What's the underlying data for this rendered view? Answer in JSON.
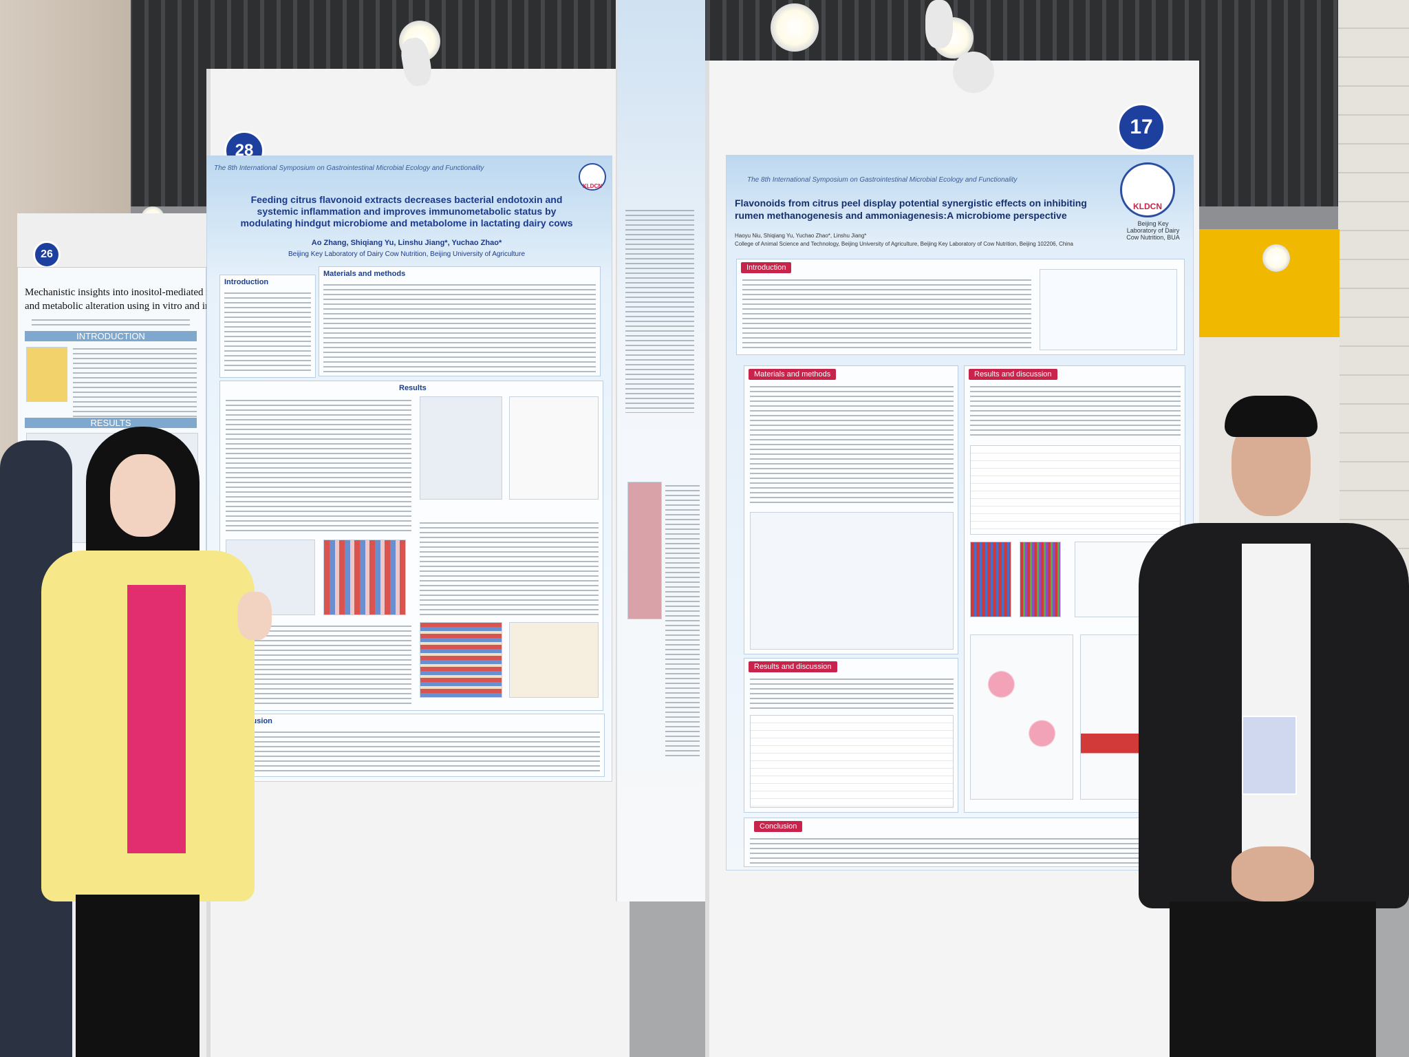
{
  "poster_26": {
    "number": "26",
    "title_line_1": "Mechanistic insights into inositol-mediated rumen f",
    "title_line_2": "and metabolic alteration using in vitro and in",
    "sections": [
      "INTRODUCTION",
      "RESULTS"
    ]
  },
  "poster_28": {
    "number": "28",
    "header": "The 8th International Symposium on Gastrointestinal Microbial Ecology and Functionality",
    "logo": "KLDCN",
    "title": "Feeding citrus flavonoid extracts decreases bacterial endotoxin and systemic inflammation and improves immunometabolic status by modulating hindgut microbiome and metabolome in lactating dairy cows",
    "authors": "Ao Zhang, Shiqiang Yu, Linshu Jiang*, Yuchao Zhao*",
    "affiliation": "Beijing Key Laboratory of Dairy Cow Nutrition, Beijing University of Agriculture",
    "sections": [
      "Introduction",
      "Materials and methods",
      "Results",
      "Conclusion"
    ]
  },
  "poster_17": {
    "number": "17",
    "header": "The 8th International Symposium on Gastrointestinal Microbial Ecology and Functionality",
    "logo": "KLDCN",
    "lab": "Beijing Key Laboratory of Dairy Cow Nutrition, BUA",
    "title": "Flavonoids from citrus peel display potential synergistic effects on inhibiting rumen methanogenesis and ammoniagenesis:A microbiome perspective",
    "authors": "Haoyu Niu, Shiqiang Yu, Yuchao Zhao*, Linshu Jiang*",
    "affiliation": "College of Animal Science and Technology, Beijing University of Agriculture, Beijing Key Laboratory of Cow Nutrition, Beijing 102206, China",
    "sections": [
      "Introduction",
      "Materials and methods",
      "Results and discussion",
      "Results and discussion",
      "Conclusion"
    ]
  }
}
